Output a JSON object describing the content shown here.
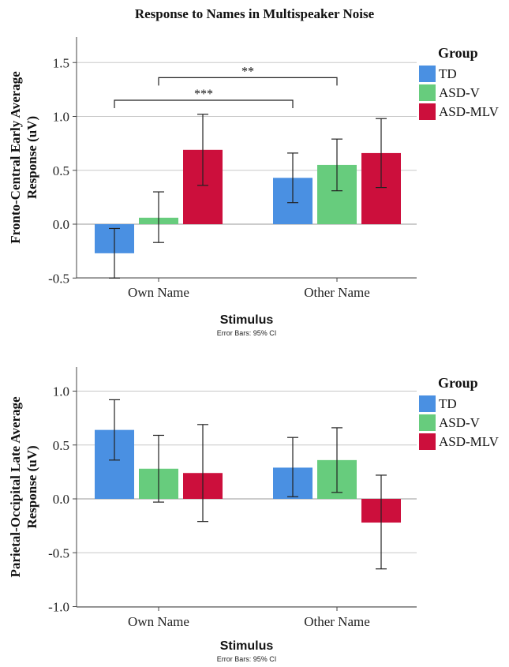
{
  "title": "Response to Names in Multispeaker Noise",
  "colors": {
    "TD": "#4a90e2",
    "ASD-V": "#67cc7d",
    "ASD-MLV": "#cc0f3c"
  },
  "chart_data": [
    {
      "type": "bar",
      "xlabel": "Stimulus",
      "ylabel": [
        "Fronto-Central Early Average",
        "Response (uV)"
      ],
      "note": "Error Bars: 95% CI",
      "ylim": [
        -0.5,
        1.75
      ],
      "yticks": [
        1.5,
        1.0,
        0.5,
        0.0,
        -0.5
      ],
      "ytick_labels": [
        "1.5",
        "1.0",
        "0.5",
        "0.0",
        "-0.5"
      ],
      "grid": true,
      "legend": {
        "title": "Group",
        "position": "top-right"
      },
      "categories": [
        "Own Name",
        "Other Name"
      ],
      "series": [
        {
          "name": "TD",
          "values": [
            -0.27,
            0.43
          ],
          "ci": [
            [
              -0.5,
              -0.04
            ],
            [
              0.2,
              0.66
            ]
          ]
        },
        {
          "name": "ASD-V",
          "values": [
            0.06,
            0.55
          ],
          "ci": [
            [
              -0.17,
              0.3
            ],
            [
              0.31,
              0.79
            ]
          ]
        },
        {
          "name": "ASD-MLV",
          "values": [
            0.69,
            0.66
          ],
          "ci": [
            [
              0.36,
              1.02
            ],
            [
              0.34,
              0.98
            ]
          ]
        }
      ],
      "annotations": [
        {
          "label": "***",
          "from": "Own Name / TD",
          "to": "Other Name / TD",
          "at": 1.15
        },
        {
          "label": "**",
          "from": "Own Name / ASD-V",
          "to": "Other Name / ASD-V",
          "at": 1.36
        }
      ]
    },
    {
      "type": "bar",
      "xlabel": "Stimulus",
      "ylabel": [
        "Parietal-Occipital Late Average",
        "Response (uV)"
      ],
      "note": "Error Bars: 95% CI",
      "ylim": [
        -1.0,
        1.25
      ],
      "yticks": [
        1.0,
        0.5,
        0.0,
        -0.5,
        -1.0
      ],
      "ytick_labels": [
        "1.0",
        "0.5",
        "0.0",
        "-0.5",
        "-1.0"
      ],
      "grid": true,
      "legend": {
        "title": "Group",
        "position": "top-right"
      },
      "categories": [
        "Own Name",
        "Other Name"
      ],
      "series": [
        {
          "name": "TD",
          "values": [
            0.64,
            0.29
          ],
          "ci": [
            [
              0.36,
              0.92
            ],
            [
              0.02,
              0.57
            ]
          ]
        },
        {
          "name": "ASD-V",
          "values": [
            0.28,
            0.36
          ],
          "ci": [
            [
              -0.03,
              0.59
            ],
            [
              0.06,
              0.66
            ]
          ]
        },
        {
          "name": "ASD-MLV",
          "values": [
            0.24,
            -0.22
          ],
          "ci": [
            [
              -0.21,
              0.69
            ],
            [
              -0.65,
              0.22
            ]
          ]
        }
      ],
      "annotations": []
    }
  ]
}
